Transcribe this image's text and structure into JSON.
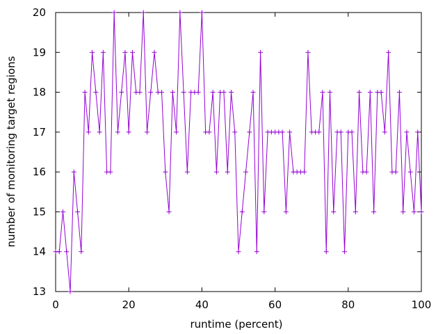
{
  "chart_data": {
    "type": "line",
    "title": "",
    "xlabel": "runtime (percent)",
    "ylabel": "number of monitoring target regions",
    "xlim": [
      0,
      100
    ],
    "ylim": [
      13,
      20
    ],
    "xticks": [
      0,
      20,
      40,
      60,
      80,
      100
    ],
    "yticks": [
      13,
      14,
      15,
      16,
      17,
      18,
      19,
      20
    ],
    "grid": false,
    "legend": "none",
    "marker": "plus",
    "color": "#9400d3",
    "series": [
      {
        "x": [
          0,
          1,
          2,
          3,
          4,
          5,
          6,
          7,
          8,
          9,
          10,
          11,
          12,
          13,
          14,
          15,
          16,
          17,
          18,
          19,
          20,
          21,
          22,
          23,
          24,
          25,
          26,
          27,
          28,
          29,
          30,
          31,
          32,
          33,
          34,
          35,
          36,
          37,
          38,
          39,
          40,
          41,
          42,
          43,
          44,
          45,
          46,
          47,
          48,
          49,
          50,
          51,
          52,
          53,
          54,
          55,
          56,
          57,
          58,
          59,
          60,
          61,
          62,
          63,
          64,
          65,
          66,
          67,
          68,
          69,
          70,
          71,
          72,
          73,
          74,
          75,
          76,
          77,
          78,
          79,
          80,
          81,
          82,
          83,
          84,
          85,
          86,
          87,
          88,
          89,
          90,
          91,
          92,
          93,
          94,
          95,
          96,
          97,
          98,
          99,
          100
        ],
        "y": [
          14,
          14,
          15,
          14,
          13,
          16,
          15,
          14,
          18,
          17,
          19,
          18,
          17,
          19,
          16,
          16,
          20,
          17,
          18,
          19,
          17,
          19,
          18,
          18,
          20,
          17,
          18,
          19,
          18,
          18,
          16,
          15,
          18,
          17,
          20,
          18,
          16,
          18,
          18,
          18,
          20,
          17,
          17,
          18,
          16,
          18,
          18,
          16,
          18,
          17,
          14,
          15,
          16,
          17,
          18,
          14,
          19,
          15,
          17,
          17,
          17,
          17,
          17,
          15,
          17,
          16,
          16,
          16,
          16,
          19,
          17,
          17,
          17,
          18,
          14,
          18,
          15,
          17,
          17,
          14,
          17,
          17,
          15,
          18,
          16,
          16,
          18,
          15,
          18,
          18,
          17,
          19,
          16,
          16,
          18,
          15,
          17,
          16,
          15,
          17,
          15
        ]
      }
    ]
  }
}
